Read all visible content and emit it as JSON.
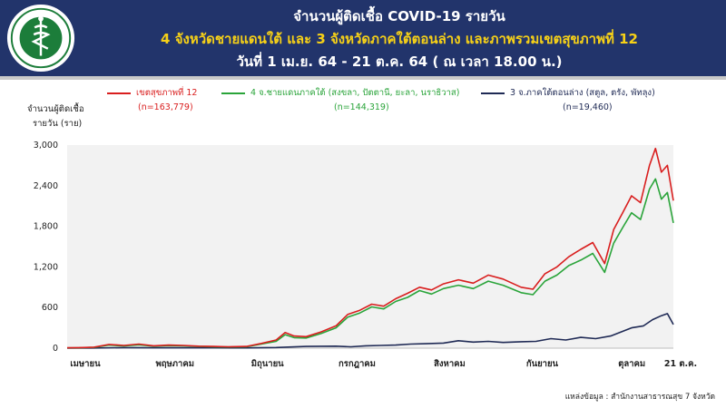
{
  "header": {
    "title": "จำนวนผู้ติดเชื้อ COVID-19 รายวัน",
    "subtitle": "4 จังหวัดชายแดนใต้ และ 3 จังหวัดภาคใต้ตอนล่าง และภาพรวมเขตสุขภาพที่ 12",
    "date_range": "วันที่ 1 เม.ย. 64 - 21 ต.ค. 64 ( ณ เวลา 18.00 น.)"
  },
  "colors": {
    "header_bg": "#22346b",
    "subtitle": "#f7d117",
    "region12": "#d91e1e",
    "border4": "#2aa43a",
    "lower3": "#1f2a55",
    "plot_bg": "#f2f2f2"
  },
  "icons": {
    "logo": "ministry-of-public-health-seal-icon"
  },
  "source": "แหล่งข้อมูล : สำนักงานสาธารณสุข 7 จังหวัด",
  "chart_data": {
    "type": "line",
    "ylabel": "จำนวนผู้ติดเชื้อ\nรายวัน (ราย)",
    "ylabel_line1": "จำนวนผู้ติดเชื้อ",
    "ylabel_line2": "รายวัน (ราย)",
    "ylim": [
      0,
      3000
    ],
    "yticks": [
      "0",
      "600",
      "1,200",
      "1,800",
      "2,400",
      "3,000"
    ],
    "ytick_values": [
      0,
      600,
      1200,
      1800,
      2400,
      3000
    ],
    "x_range": [
      "2021-04-01",
      "2021-10-21"
    ],
    "x_ticks": [
      {
        "date": "2021-04-01",
        "label": "เมษายน"
      },
      {
        "date": "2021-05-01",
        "label": "พฤษภาคม"
      },
      {
        "date": "2021-06-01",
        "label": "มิถุนายน"
      },
      {
        "date": "2021-07-01",
        "label": "กรกฎาคม"
      },
      {
        "date": "2021-08-01",
        "label": "สิงหาคม"
      },
      {
        "date": "2021-09-01",
        "label": "กันยายน"
      },
      {
        "date": "2021-10-01",
        "label": "ตุลาคม"
      },
      {
        "date": "2021-10-21",
        "label": "21 ต.ค."
      }
    ],
    "legend_position": "top",
    "grid": false,
    "series": [
      {
        "name": "เขตสุขภาพที่ 12",
        "total": "(n=163,779)",
        "color": "#d91e1e",
        "points": [
          [
            "2021-04-01",
            5
          ],
          [
            "2021-04-05",
            8
          ],
          [
            "2021-04-10",
            15
          ],
          [
            "2021-04-15",
            55
          ],
          [
            "2021-04-20",
            40
          ],
          [
            "2021-04-25",
            60
          ],
          [
            "2021-04-30",
            35
          ],
          [
            "2021-05-05",
            45
          ],
          [
            "2021-05-10",
            40
          ],
          [
            "2021-05-15",
            30
          ],
          [
            "2021-05-20",
            25
          ],
          [
            "2021-05-25",
            20
          ],
          [
            "2021-05-31",
            25
          ],
          [
            "2021-06-05",
            70
          ],
          [
            "2021-06-10",
            120
          ],
          [
            "2021-06-13",
            230
          ],
          [
            "2021-06-16",
            180
          ],
          [
            "2021-06-20",
            170
          ],
          [
            "2021-06-25",
            240
          ],
          [
            "2021-06-30",
            330
          ],
          [
            "2021-07-04",
            500
          ],
          [
            "2021-07-08",
            560
          ],
          [
            "2021-07-12",
            650
          ],
          [
            "2021-07-16",
            620
          ],
          [
            "2021-07-20",
            730
          ],
          [
            "2021-07-24",
            810
          ],
          [
            "2021-07-28",
            900
          ],
          [
            "2021-08-01",
            860
          ],
          [
            "2021-08-05",
            950
          ],
          [
            "2021-08-10",
            1010
          ],
          [
            "2021-08-15",
            960
          ],
          [
            "2021-08-20",
            1080
          ],
          [
            "2021-08-25",
            1020
          ],
          [
            "2021-08-31",
            900
          ],
          [
            "2021-09-04",
            870
          ],
          [
            "2021-09-08",
            1100
          ],
          [
            "2021-09-12",
            1200
          ],
          [
            "2021-09-16",
            1350
          ],
          [
            "2021-09-20",
            1460
          ],
          [
            "2021-09-24",
            1560
          ],
          [
            "2021-09-28",
            1250
          ],
          [
            "2021-10-01",
            1750
          ],
          [
            "2021-10-04",
            2000
          ],
          [
            "2021-10-07",
            2250
          ],
          [
            "2021-10-10",
            2150
          ],
          [
            "2021-10-13",
            2700
          ],
          [
            "2021-10-15",
            2950
          ],
          [
            "2021-10-17",
            2600
          ],
          [
            "2021-10-19",
            2700
          ],
          [
            "2021-10-21",
            2180
          ]
        ]
      },
      {
        "name": "4 จ.ชายแดนภาคใต้ (สงขลา, ปัตตานี, ยะลา, นราธิวาส)",
        "total": "(n=144,319)",
        "color": "#2aa43a",
        "points": [
          [
            "2021-04-01",
            4
          ],
          [
            "2021-04-05",
            6
          ],
          [
            "2021-04-10",
            12
          ],
          [
            "2021-04-15",
            45
          ],
          [
            "2021-04-20",
            32
          ],
          [
            "2021-04-25",
            50
          ],
          [
            "2021-04-30",
            30
          ],
          [
            "2021-05-05",
            38
          ],
          [
            "2021-05-10",
            33
          ],
          [
            "2021-05-15",
            25
          ],
          [
            "2021-05-20",
            20
          ],
          [
            "2021-05-25",
            17
          ],
          [
            "2021-05-31",
            20
          ],
          [
            "2021-06-05",
            60
          ],
          [
            "2021-06-10",
            100
          ],
          [
            "2021-06-13",
            200
          ],
          [
            "2021-06-16",
            155
          ],
          [
            "2021-06-20",
            150
          ],
          [
            "2021-06-25",
            215
          ],
          [
            "2021-06-30",
            300
          ],
          [
            "2021-07-04",
            460
          ],
          [
            "2021-07-08",
            520
          ],
          [
            "2021-07-12",
            610
          ],
          [
            "2021-07-16",
            580
          ],
          [
            "2021-07-20",
            690
          ],
          [
            "2021-07-24",
            750
          ],
          [
            "2021-07-28",
            850
          ],
          [
            "2021-08-01",
            800
          ],
          [
            "2021-08-05",
            880
          ],
          [
            "2021-08-10",
            930
          ],
          [
            "2021-08-15",
            880
          ],
          [
            "2021-08-20",
            990
          ],
          [
            "2021-08-25",
            930
          ],
          [
            "2021-08-31",
            820
          ],
          [
            "2021-09-04",
            790
          ],
          [
            "2021-09-08",
            990
          ],
          [
            "2021-09-12",
            1080
          ],
          [
            "2021-09-16",
            1220
          ],
          [
            "2021-09-20",
            1300
          ],
          [
            "2021-09-24",
            1400
          ],
          [
            "2021-09-28",
            1120
          ],
          [
            "2021-10-01",
            1550
          ],
          [
            "2021-10-04",
            1780
          ],
          [
            "2021-10-07",
            2000
          ],
          [
            "2021-10-10",
            1900
          ],
          [
            "2021-10-13",
            2350
          ],
          [
            "2021-10-15",
            2500
          ],
          [
            "2021-10-17",
            2200
          ],
          [
            "2021-10-19",
            2300
          ],
          [
            "2021-10-21",
            1850
          ]
        ]
      },
      {
        "name": "3 จ.ภาคใต้ตอนล่าง (สตูล, ตรัง, พัทลุง)",
        "total": "(n=19,460)",
        "color": "#1f2a55",
        "points": [
          [
            "2021-04-01",
            1
          ],
          [
            "2021-04-10",
            3
          ],
          [
            "2021-04-20",
            8
          ],
          [
            "2021-04-30",
            6
          ],
          [
            "2021-05-10",
            6
          ],
          [
            "2021-05-20",
            5
          ],
          [
            "2021-05-31",
            4
          ],
          [
            "2021-06-10",
            10
          ],
          [
            "2021-06-20",
            25
          ],
          [
            "2021-06-30",
            30
          ],
          [
            "2021-07-05",
            20
          ],
          [
            "2021-07-10",
            35
          ],
          [
            "2021-07-15",
            40
          ],
          [
            "2021-07-20",
            45
          ],
          [
            "2021-07-25",
            60
          ],
          [
            "2021-07-30",
            65
          ],
          [
            "2021-08-05",
            75
          ],
          [
            "2021-08-10",
            110
          ],
          [
            "2021-08-15",
            90
          ],
          [
            "2021-08-20",
            100
          ],
          [
            "2021-08-25",
            85
          ],
          [
            "2021-08-31",
            95
          ],
          [
            "2021-09-05",
            100
          ],
          [
            "2021-09-10",
            140
          ],
          [
            "2021-09-15",
            120
          ],
          [
            "2021-09-20",
            160
          ],
          [
            "2021-09-25",
            140
          ],
          [
            "2021-09-30",
            180
          ],
          [
            "2021-10-03",
            230
          ],
          [
            "2021-10-07",
            300
          ],
          [
            "2021-10-11",
            330
          ],
          [
            "2021-10-14",
            420
          ],
          [
            "2021-10-17",
            480
          ],
          [
            "2021-10-19",
            510
          ],
          [
            "2021-10-21",
            350
          ]
        ]
      }
    ]
  }
}
